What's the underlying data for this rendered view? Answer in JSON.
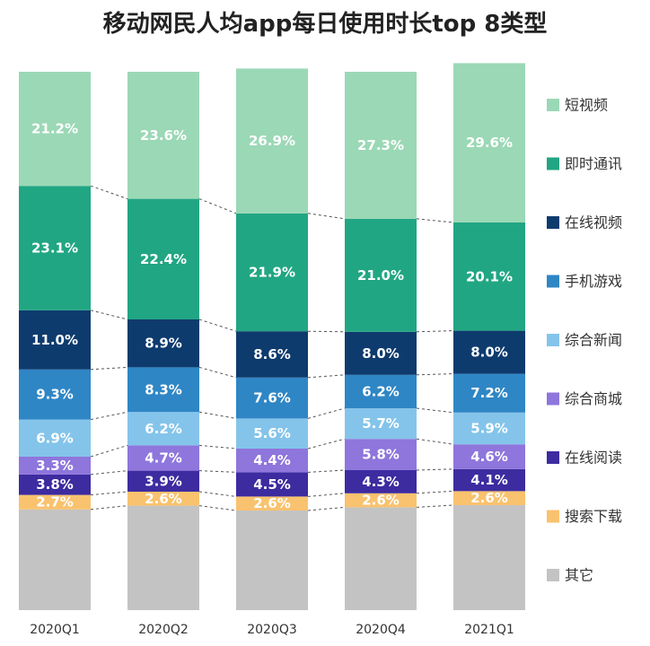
{
  "chart_data": {
    "type": "bar",
    "stacked": true,
    "title": "移动网民人均app每日使用时长top 8类型",
    "categories": [
      "2020Q1",
      "2020Q2",
      "2020Q3",
      "2020Q4",
      "2021Q1"
    ],
    "series": [
      {
        "name": "其它",
        "color": "#c3c3c3",
        "values": [
          18.7,
          19.4,
          18.5,
          19.1,
          19.5
        ],
        "labels": [
          "",
          "",
          "",
          "",
          ""
        ]
      },
      {
        "name": "搜索下载",
        "color": "#f9c26e",
        "values": [
          2.7,
          2.6,
          2.6,
          2.6,
          2.6
        ],
        "labels": [
          "2.7%",
          "2.6%",
          "2.6%",
          "2.6%",
          "2.6%"
        ]
      },
      {
        "name": "在线阅读",
        "color": "#3d2ba0",
        "values": [
          3.8,
          3.9,
          4.5,
          4.3,
          4.1
        ],
        "labels": [
          "3.8%",
          "3.9%",
          "4.5%",
          "4.3%",
          "4.1%"
        ]
      },
      {
        "name": "综合商城",
        "color": "#8e76dc",
        "values": [
          3.3,
          4.7,
          4.4,
          5.8,
          4.6
        ],
        "labels": [
          "3.3%",
          "4.7%",
          "4.4%",
          "5.8%",
          "4.6%"
        ]
      },
      {
        "name": "综合新闻",
        "color": "#84c4ea",
        "values": [
          6.9,
          6.2,
          5.6,
          5.7,
          5.9
        ],
        "labels": [
          "6.9%",
          "6.2%",
          "5.6%",
          "5.7%",
          "5.9%"
        ]
      },
      {
        "name": "手机游戏",
        "color": "#2f86c5",
        "values": [
          9.3,
          8.3,
          7.6,
          6.2,
          7.2
        ],
        "labels": [
          "9.3%",
          "8.3%",
          "7.6%",
          "6.2%",
          "7.2%"
        ]
      },
      {
        "name": "在线视频",
        "color": "#0e3b6e",
        "values": [
          11.0,
          8.9,
          8.6,
          8.0,
          8.0
        ],
        "labels": [
          "11.0%",
          "8.9%",
          "8.6%",
          "8.0%",
          "8.0%"
        ]
      },
      {
        "name": "即时通讯",
        "color": "#21a683",
        "values": [
          23.1,
          22.4,
          21.9,
          21.0,
          20.1
        ],
        "labels": [
          "23.1%",
          "22.4%",
          "21.9%",
          "21.0%",
          "20.1%"
        ]
      },
      {
        "name": "短视频",
        "color": "#9bd8b6",
        "values": [
          21.2,
          23.6,
          26.9,
          27.3,
          29.6
        ],
        "labels": [
          "21.2%",
          "23.6%",
          "26.9%",
          "27.3%",
          "29.6%"
        ]
      }
    ],
    "legend_order": [
      "短视频",
      "即时通讯",
      "在线视频",
      "手机游戏",
      "综合新闻",
      "综合商城",
      "在线阅读",
      "搜索下载",
      "其它"
    ],
    "ylim": [
      0,
      100
    ],
    "legend_position": "right",
    "grid": false
  }
}
